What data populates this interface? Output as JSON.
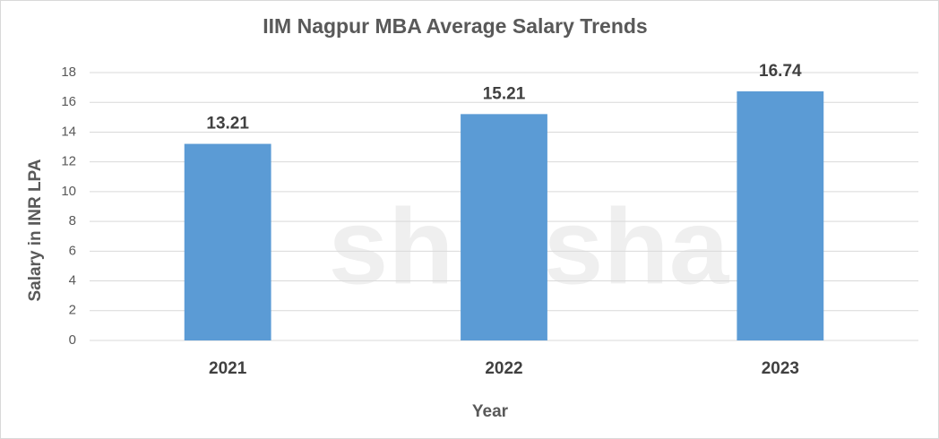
{
  "chart_data": {
    "type": "bar",
    "title": "IIM Nagpur MBA Average Salary Trends",
    "x_label": "Year",
    "y_label": "Salary in INR LPA",
    "watermark": "shiksha",
    "categories": [
      "2021",
      "2022",
      "2023"
    ],
    "values": [
      13.21,
      15.21,
      16.74
    ],
    "color": "#5b9bd5",
    "ylim": [
      0,
      18
    ],
    "yticks": [
      0,
      2,
      4,
      6,
      8,
      10,
      12,
      14,
      16,
      18
    ],
    "grid": true
  }
}
